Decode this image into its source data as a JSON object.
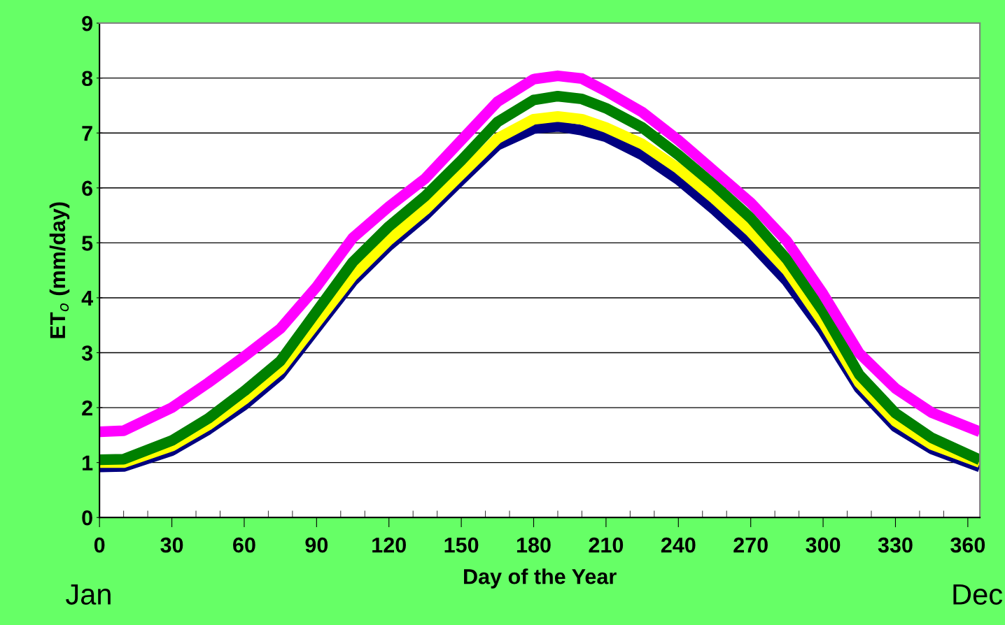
{
  "chart_data": {
    "type": "line",
    "xlabel": "Day of the Year",
    "ylabel": "ET$_{o}$ (mm/day)",
    "annotations": [
      "Jan",
      "Dec"
    ],
    "x": [
      0,
      10,
      30,
      45,
      60,
      75,
      90,
      105,
      120,
      135,
      150,
      165,
      180,
      190,
      200,
      210,
      225,
      240,
      255,
      270,
      285,
      300,
      315,
      330,
      345,
      365
    ],
    "series": [
      {
        "color": "#000080",
        "values": [
          0.92,
          0.93,
          1.22,
          1.6,
          2.05,
          2.6,
          3.45,
          4.3,
          4.95,
          5.5,
          6.15,
          6.78,
          7.08,
          7.12,
          7.05,
          6.93,
          6.6,
          6.15,
          5.6,
          5.0,
          4.3,
          3.4,
          2.35,
          1.65,
          1.25,
          0.92
        ]
      },
      {
        "color": "#ffff00",
        "values": [
          1.0,
          1.0,
          1.3,
          1.68,
          2.15,
          2.7,
          3.55,
          4.4,
          5.05,
          5.6,
          6.25,
          6.9,
          7.25,
          7.3,
          7.25,
          7.1,
          6.8,
          6.35,
          5.8,
          5.2,
          4.5,
          3.55,
          2.45,
          1.75,
          1.33,
          1.0
        ]
      },
      {
        "color": "#008000",
        "values": [
          1.05,
          1.06,
          1.4,
          1.8,
          2.3,
          2.85,
          3.75,
          4.65,
          5.3,
          5.85,
          6.5,
          7.2,
          7.6,
          7.67,
          7.62,
          7.45,
          7.1,
          6.6,
          6.05,
          5.45,
          4.7,
          3.75,
          2.6,
          1.9,
          1.45,
          1.05
        ]
      },
      {
        "color": "#ff00ff",
        "values": [
          1.56,
          1.58,
          2.0,
          2.45,
          2.93,
          3.44,
          4.2,
          5.09,
          5.66,
          6.17,
          6.87,
          7.57,
          7.98,
          8.04,
          7.99,
          7.76,
          7.38,
          6.87,
          6.3,
          5.73,
          5.03,
          4.07,
          2.99,
          2.35,
          1.91,
          1.56
        ]
      }
    ],
    "xlim": [
      0,
      365
    ],
    "xticks": [
      0,
      {
        "value": 10,
        "label": null
      },
      {
        "value": 20,
        "label": null
      },
      30,
      {
        "value": 40,
        "label": null
      },
      {
        "value": 50,
        "label": null
      },
      60,
      {
        "value": 70,
        "label": null
      },
      {
        "value": 80,
        "label": null
      },
      90,
      {
        "value": 100,
        "label": null
      },
      {
        "value": 110,
        "label": null
      },
      120,
      {
        "value": 130,
        "label": null
      },
      {
        "value": 140,
        "label": null
      },
      150,
      {
        "value": 160,
        "label": null
      },
      {
        "value": 170,
        "label": null
      },
      180,
      {
        "value": 190,
        "label": null
      },
      {
        "value": 200,
        "label": null
      },
      210,
      {
        "value": 220,
        "label": null
      },
      {
        "value": 230,
        "label": null
      },
      240,
      {
        "value": 250,
        "label": null
      },
      {
        "value": 260,
        "label": null
      },
      270,
      {
        "value": 280,
        "label": null
      },
      {
        "value": 290,
        "label": null
      },
      300,
      {
        "value": 310,
        "label": null
      },
      {
        "value": 320,
        "label": null
      },
      330,
      {
        "value": 340,
        "label": null
      },
      {
        "value": 350,
        "label": null
      },
      360
    ],
    "ylim": [
      0,
      9
    ],
    "yticks": [
      0,
      1,
      2,
      3,
      4,
      5,
      6,
      7,
      8,
      9
    ],
    "grid": "y"
  }
}
